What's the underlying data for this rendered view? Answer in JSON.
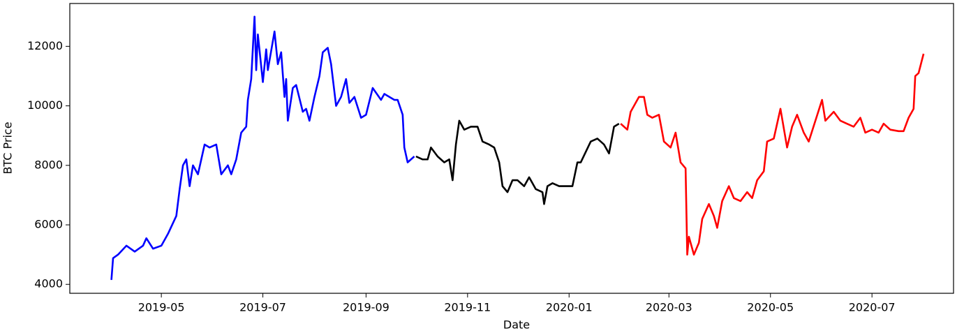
{
  "chart_data": {
    "type": "line",
    "x_label": "Date",
    "y_label": "BTC Price",
    "xlim": [
      "2019-03-07",
      "2020-08-19"
    ],
    "xticks": [
      {
        "value": "2019-05-01",
        "label": "2019-05"
      },
      {
        "value": "2019-07-01",
        "label": "2019-07"
      },
      {
        "value": "2019-09-01",
        "label": "2019-09"
      },
      {
        "value": "2019-11-01",
        "label": "2019-11"
      },
      {
        "value": "2020-01-01",
        "label": "2020-01"
      },
      {
        "value": "2020-03-01",
        "label": "2020-03"
      },
      {
        "value": "2020-05-01",
        "label": "2020-05"
      },
      {
        "value": "2020-07-01",
        "label": "2020-07"
      }
    ],
    "ylim": [
      3700,
      13440
    ],
    "yticks": [
      4000,
      6000,
      8000,
      10000,
      12000
    ],
    "grid": false,
    "series": [
      {
        "color": "#0000ff",
        "x": [
          "2019-04-01",
          "2019-04-02",
          "2019-04-05",
          "2019-04-10",
          "2019-04-15",
          "2019-04-20",
          "2019-04-22",
          "2019-04-26",
          "2019-05-01",
          "2019-05-05",
          "2019-05-10",
          "2019-05-12",
          "2019-05-14",
          "2019-05-16",
          "2019-05-18",
          "2019-05-20",
          "2019-05-23",
          "2019-05-27",
          "2019-05-30",
          "2019-06-03",
          "2019-06-06",
          "2019-06-10",
          "2019-06-12",
          "2019-06-15",
          "2019-06-18",
          "2019-06-21",
          "2019-06-22",
          "2019-06-24",
          "2019-06-26",
          "2019-06-27",
          "2019-06-28",
          "2019-07-01",
          "2019-07-03",
          "2019-07-04",
          "2019-07-08",
          "2019-07-10",
          "2019-07-12",
          "2019-07-14",
          "2019-07-15",
          "2019-07-16",
          "2019-07-19",
          "2019-07-21",
          "2019-07-25",
          "2019-07-27",
          "2019-07-29",
          "2019-08-01",
          "2019-08-04",
          "2019-08-06",
          "2019-08-09",
          "2019-08-11",
          "2019-08-14",
          "2019-08-17",
          "2019-08-20",
          "2019-08-22",
          "2019-08-25",
          "2019-08-29",
          "2019-09-01",
          "2019-09-05",
          "2019-09-10",
          "2019-09-12",
          "2019-09-15",
          "2019-09-18",
          "2019-09-20",
          "2019-09-23",
          "2019-09-24",
          "2019-09-26",
          "2019-09-30"
        ],
        "values": [
          4150,
          4880,
          5000,
          5300,
          5100,
          5300,
          5550,
          5200,
          5300,
          5700,
          6300,
          7200,
          8000,
          8200,
          7300,
          8000,
          7700,
          8700,
          8600,
          8700,
          7700,
          8000,
          7700,
          8200,
          9100,
          9300,
          10200,
          10900,
          13000,
          11200,
          12400,
          10800,
          11900,
          11200,
          12500,
          11400,
          11800,
          10300,
          10900,
          9500,
          10600,
          10700,
          9800,
          9900,
          9500,
          10300,
          11000,
          11800,
          11950,
          11400,
          10000,
          10300,
          10900,
          10100,
          10300,
          9600,
          9700,
          10600,
          10200,
          10400,
          10300,
          10200,
          10200,
          9700,
          8600,
          8100,
          8300
        ]
      },
      {
        "color": "#000000",
        "x": [
          "2019-10-01",
          "2019-10-05",
          "2019-10-08",
          "2019-10-10",
          "2019-10-14",
          "2019-10-18",
          "2019-10-21",
          "2019-10-23",
          "2019-10-25",
          "2019-10-27",
          "2019-10-30",
          "2019-11-03",
          "2019-11-07",
          "2019-11-10",
          "2019-11-14",
          "2019-11-17",
          "2019-11-20",
          "2019-11-22",
          "2019-11-25",
          "2019-11-28",
          "2019-12-01",
          "2019-12-05",
          "2019-12-08",
          "2019-12-12",
          "2019-12-16",
          "2019-12-17",
          "2019-12-19",
          "2019-12-22",
          "2019-12-26",
          "2019-12-30",
          "2020-01-03",
          "2020-01-06",
          "2020-01-08",
          "2020-01-14",
          "2020-01-18",
          "2020-01-22",
          "2020-01-25",
          "2020-01-28",
          "2020-01-31"
        ],
        "values": [
          8300,
          8200,
          8200,
          8600,
          8300,
          8100,
          8200,
          7500,
          8700,
          9500,
          9200,
          9300,
          9300,
          8800,
          8700,
          8600,
          8100,
          7300,
          7100,
          7500,
          7500,
          7300,
          7600,
          7200,
          7100,
          6700,
          7300,
          7400,
          7300,
          7300,
          7300,
          8100,
          8100,
          8800,
          8900,
          8700,
          8400,
          9300,
          9400
        ]
      },
      {
        "color": "#ff0000",
        "x": [
          "2020-02-01",
          "2020-02-05",
          "2020-02-07",
          "2020-02-12",
          "2020-02-15",
          "2020-02-17",
          "2020-02-20",
          "2020-02-24",
          "2020-02-27",
          "2020-03-02",
          "2020-03-05",
          "2020-03-08",
          "2020-03-11",
          "2020-03-12",
          "2020-03-13",
          "2020-03-16",
          "2020-03-19",
          "2020-03-21",
          "2020-03-25",
          "2020-03-28",
          "2020-03-30",
          "2020-04-02",
          "2020-04-06",
          "2020-04-09",
          "2020-04-13",
          "2020-04-17",
          "2020-04-20",
          "2020-04-23",
          "2020-04-27",
          "2020-04-29",
          "2020-05-03",
          "2020-05-07",
          "2020-05-11",
          "2020-05-14",
          "2020-05-17",
          "2020-05-21",
          "2020-05-24",
          "2020-05-28",
          "2020-06-01",
          "2020-06-03",
          "2020-06-08",
          "2020-06-12",
          "2020-06-16",
          "2020-06-20",
          "2020-06-24",
          "2020-06-27",
          "2020-07-01",
          "2020-07-05",
          "2020-07-08",
          "2020-07-12",
          "2020-07-17",
          "2020-07-20",
          "2020-07-23",
          "2020-07-26",
          "2020-07-27",
          "2020-07-29",
          "2020-08-01"
        ],
        "values": [
          9400,
          9200,
          9800,
          10300,
          10300,
          9700,
          9600,
          9700,
          8800,
          8600,
          9100,
          8100,
          7900,
          5000,
          5600,
          5000,
          5400,
          6200,
          6700,
          6300,
          5900,
          6800,
          7300,
          6900,
          6800,
          7100,
          6900,
          7500,
          7800,
          8800,
          8900,
          9900,
          8600,
          9300,
          9700,
          9100,
          8800,
          9500,
          10200,
          9500,
          9800,
          9500,
          9400,
          9300,
          9600,
          9100,
          9200,
          9100,
          9400,
          9200,
          9150,
          9150,
          9600,
          9900,
          11000,
          11100,
          11750
        ]
      }
    ]
  }
}
